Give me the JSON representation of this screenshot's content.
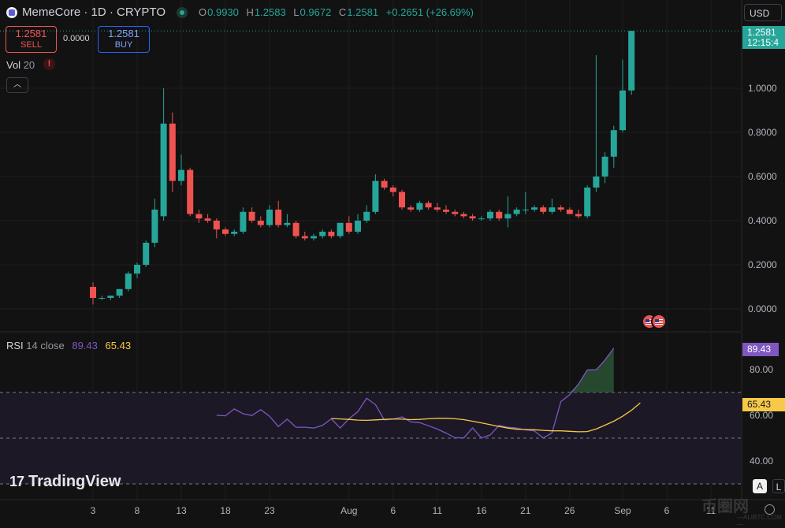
{
  "header": {
    "symbol": "MemeCore · 1D · CRYPTO",
    "ohlc": {
      "o_label": "O",
      "o": "0.9930",
      "h_label": "H",
      "h": "1.2583",
      "l_label": "L",
      "l": "0.9672",
      "c_label": "C",
      "c": "1.2581",
      "change": "+0.2651 (+26.69%)"
    }
  },
  "trade": {
    "sell_price": "1.2581",
    "sell_label": "SELL",
    "spread": "0.0000",
    "buy_price": "1.2581",
    "buy_label": "BUY"
  },
  "volume": {
    "label": "Vol",
    "length": "20",
    "warn": "!"
  },
  "collapse_glyph": "︿",
  "currency": "USD",
  "last_price": {
    "price": "1.2581",
    "countdown": "12:15:4"
  },
  "rsi": {
    "label": "RSI",
    "params": "14 close",
    "value": "89.43",
    "ma_value": "65.43"
  },
  "buttons": {
    "auto": "A",
    "log": "L"
  },
  "branding": {
    "tv_mark": "17",
    "tv_name": "TradingView"
  },
  "watermark": {
    "text": "币圈网",
    "sub": "—ALIBTC.COM—"
  },
  "colors": {
    "up": "#26a69a",
    "down": "#ef5350",
    "rsi": "#7e57c2",
    "rsi_ma": "#f7c948",
    "background": "#121212"
  },
  "chart_data": [
    {
      "type": "candlestick",
      "title": "MemeCore · 1D · CRYPTO",
      "x_tick_labels": [
        "3",
        "8",
        "13",
        "18",
        "23",
        "Aug",
        "6",
        "11",
        "16",
        "21",
        "26",
        "Sep",
        "6",
        "11"
      ],
      "y_tick_labels": [
        "1.0000",
        "0.8000",
        "0.6000",
        "0.4000",
        "0.2000",
        "0.0000"
      ],
      "ylim": [
        -0.1,
        1.26
      ],
      "grid": true,
      "candles": [
        {
          "d": "Jul 3",
          "o": 0.1,
          "h": 0.12,
          "l": 0.02,
          "c": 0.05
        },
        {
          "d": "Jul 4",
          "o": 0.05,
          "h": 0.06,
          "l": 0.04,
          "c": 0.05
        },
        {
          "d": "Jul 5",
          "o": 0.05,
          "h": 0.06,
          "l": 0.04,
          "c": 0.06
        },
        {
          "d": "Jul 6",
          "o": 0.06,
          "h": 0.09,
          "l": 0.05,
          "c": 0.09
        },
        {
          "d": "Jul 7",
          "o": 0.09,
          "h": 0.17,
          "l": 0.08,
          "c": 0.16
        },
        {
          "d": "Jul 8",
          "o": 0.16,
          "h": 0.21,
          "l": 0.14,
          "c": 0.2
        },
        {
          "d": "Jul 9",
          "o": 0.2,
          "h": 0.31,
          "l": 0.19,
          "c": 0.3
        },
        {
          "d": "Jul 10",
          "o": 0.3,
          "h": 0.5,
          "l": 0.28,
          "c": 0.45
        },
        {
          "d": "Jul 11",
          "o": 0.42,
          "h": 1.0,
          "l": 0.4,
          "c": 0.84
        },
        {
          "d": "Jul 12",
          "o": 0.84,
          "h": 0.89,
          "l": 0.53,
          "c": 0.58
        },
        {
          "d": "Jul 13",
          "o": 0.58,
          "h": 0.7,
          "l": 0.56,
          "c": 0.63
        },
        {
          "d": "Jul 14",
          "o": 0.63,
          "h": 0.64,
          "l": 0.42,
          "c": 0.43
        },
        {
          "d": "Jul 15",
          "o": 0.43,
          "h": 0.45,
          "l": 0.39,
          "c": 0.41
        },
        {
          "d": "Jul 16",
          "o": 0.41,
          "h": 0.43,
          "l": 0.39,
          "c": 0.4
        },
        {
          "d": "Jul 17",
          "o": 0.4,
          "h": 0.41,
          "l": 0.32,
          "c": 0.36
        },
        {
          "d": "Jul 18",
          "o": 0.36,
          "h": 0.37,
          "l": 0.33,
          "c": 0.34
        },
        {
          "d": "Jul 19",
          "o": 0.34,
          "h": 0.36,
          "l": 0.33,
          "c": 0.35
        },
        {
          "d": "Jul 20",
          "o": 0.35,
          "h": 0.46,
          "l": 0.34,
          "c": 0.44
        },
        {
          "d": "Jul 21",
          "o": 0.44,
          "h": 0.46,
          "l": 0.39,
          "c": 0.4
        },
        {
          "d": "Jul 22",
          "o": 0.4,
          "h": 0.42,
          "l": 0.37,
          "c": 0.38
        },
        {
          "d": "Jul 23",
          "o": 0.38,
          "h": 0.47,
          "l": 0.37,
          "c": 0.45
        },
        {
          "d": "Jul 24",
          "o": 0.45,
          "h": 0.49,
          "l": 0.37,
          "c": 0.38
        },
        {
          "d": "Jul 25",
          "o": 0.38,
          "h": 0.43,
          "l": 0.37,
          "c": 0.39
        },
        {
          "d": "Jul 26",
          "o": 0.39,
          "h": 0.4,
          "l": 0.32,
          "c": 0.33
        },
        {
          "d": "Jul 27",
          "o": 0.33,
          "h": 0.35,
          "l": 0.31,
          "c": 0.32
        },
        {
          "d": "Jul 28",
          "o": 0.32,
          "h": 0.34,
          "l": 0.31,
          "c": 0.33
        },
        {
          "d": "Jul 29",
          "o": 0.33,
          "h": 0.36,
          "l": 0.32,
          "c": 0.35
        },
        {
          "d": "Jul 30",
          "o": 0.35,
          "h": 0.36,
          "l": 0.32,
          "c": 0.33
        },
        {
          "d": "Jul 31",
          "o": 0.33,
          "h": 0.39,
          "l": 0.32,
          "c": 0.39
        },
        {
          "d": "Aug 1",
          "o": 0.39,
          "h": 0.42,
          "l": 0.34,
          "c": 0.35
        },
        {
          "d": "Aug 2",
          "o": 0.35,
          "h": 0.43,
          "l": 0.34,
          "c": 0.4
        },
        {
          "d": "Aug 3",
          "o": 0.4,
          "h": 0.47,
          "l": 0.39,
          "c": 0.44
        },
        {
          "d": "Aug 4",
          "o": 0.44,
          "h": 0.61,
          "l": 0.43,
          "c": 0.58
        },
        {
          "d": "Aug 5",
          "o": 0.58,
          "h": 0.59,
          "l": 0.54,
          "c": 0.55
        },
        {
          "d": "Aug 6",
          "o": 0.55,
          "h": 0.56,
          "l": 0.51,
          "c": 0.53
        },
        {
          "d": "Aug 7",
          "o": 0.53,
          "h": 0.54,
          "l": 0.45,
          "c": 0.46
        },
        {
          "d": "Aug 8",
          "o": 0.46,
          "h": 0.47,
          "l": 0.44,
          "c": 0.45
        },
        {
          "d": "Aug 9",
          "o": 0.45,
          "h": 0.49,
          "l": 0.44,
          "c": 0.48
        },
        {
          "d": "Aug 10",
          "o": 0.48,
          "h": 0.49,
          "l": 0.45,
          "c": 0.46
        },
        {
          "d": "Aug 11",
          "o": 0.46,
          "h": 0.48,
          "l": 0.44,
          "c": 0.45
        },
        {
          "d": "Aug 12",
          "o": 0.45,
          "h": 0.47,
          "l": 0.43,
          "c": 0.44
        },
        {
          "d": "Aug 13",
          "o": 0.44,
          "h": 0.45,
          "l": 0.42,
          "c": 0.43
        },
        {
          "d": "Aug 14",
          "o": 0.43,
          "h": 0.44,
          "l": 0.41,
          "c": 0.42
        },
        {
          "d": "Aug 15",
          "o": 0.42,
          "h": 0.43,
          "l": 0.4,
          "c": 0.41
        },
        {
          "d": "Aug 16",
          "o": 0.41,
          "h": 0.42,
          "l": 0.4,
          "c": 0.41
        },
        {
          "d": "Aug 17",
          "o": 0.41,
          "h": 0.45,
          "l": 0.4,
          "c": 0.44
        },
        {
          "d": "Aug 18",
          "o": 0.44,
          "h": 0.45,
          "l": 0.4,
          "c": 0.41
        },
        {
          "d": "Aug 19",
          "o": 0.41,
          "h": 0.51,
          "l": 0.37,
          "c": 0.43
        },
        {
          "d": "Aug 20",
          "o": 0.43,
          "h": 0.46,
          "l": 0.42,
          "c": 0.45
        },
        {
          "d": "Aug 21",
          "o": 0.45,
          "h": 0.53,
          "l": 0.43,
          "c": 0.45
        },
        {
          "d": "Aug 22",
          "o": 0.45,
          "h": 0.47,
          "l": 0.44,
          "c": 0.46
        },
        {
          "d": "Aug 23",
          "o": 0.46,
          "h": 0.47,
          "l": 0.43,
          "c": 0.44
        },
        {
          "d": "Aug 24",
          "o": 0.44,
          "h": 0.5,
          "l": 0.43,
          "c": 0.46
        },
        {
          "d": "Aug 25",
          "o": 0.46,
          "h": 0.47,
          "l": 0.44,
          "c": 0.45
        },
        {
          "d": "Aug 26",
          "o": 0.45,
          "h": 0.46,
          "l": 0.43,
          "c": 0.43
        },
        {
          "d": "Aug 27",
          "o": 0.43,
          "h": 0.45,
          "l": 0.41,
          "c": 0.42
        },
        {
          "d": "Aug 28",
          "o": 0.42,
          "h": 0.56,
          "l": 0.41,
          "c": 0.55
        },
        {
          "d": "Aug 29",
          "o": 0.55,
          "h": 1.15,
          "l": 0.53,
          "c": 0.6
        },
        {
          "d": "Aug 30",
          "o": 0.6,
          "h": 0.71,
          "l": 0.57,
          "c": 0.69
        },
        {
          "d": "Aug 31",
          "o": 0.69,
          "h": 0.83,
          "l": 0.64,
          "c": 0.81
        },
        {
          "d": "Sep 1",
          "o": 0.81,
          "h": 1.13,
          "l": 0.8,
          "c": 0.99
        },
        {
          "d": "Sep 2",
          "o": 0.99,
          "h": 1.26,
          "l": 0.97,
          "c": 1.26
        }
      ]
    },
    {
      "type": "line",
      "title": "RSI 14 close",
      "y_tick_labels": [
        "80.00",
        "60.00",
        "40.00"
      ],
      "ylim": [
        30,
        96
      ],
      "bands": [
        70,
        50,
        30
      ],
      "series": [
        {
          "name": "RSI",
          "start_index": 14,
          "values": [
            60.0,
            59.8,
            62.8,
            60.7,
            59.9,
            62.5,
            59.6,
            55.1,
            58.3,
            54.8,
            54.8,
            54.4,
            55.6,
            58.5,
            54.4,
            58.5,
            61.6,
            67.5,
            64.7,
            58.0,
            58.3,
            59.3,
            57.1,
            56.8,
            55.4,
            54.0,
            52.2,
            50.2,
            50.1,
            54.5,
            50.1,
            51.4,
            55.6,
            54.8,
            54.4,
            53.6,
            53.2,
            50.1,
            52.3,
            66.0,
            69.0,
            73.7,
            79.9,
            79.9,
            84.2,
            89.4
          ]
        },
        {
          "name": "RSI-based MA",
          "start_index": 27,
          "values": [
            58.6,
            58.4,
            58.2,
            57.9,
            57.8,
            58.0,
            58.2,
            58.4,
            58.3,
            58.1,
            58.2,
            58.5,
            58.7,
            58.7,
            58.5,
            58.1,
            57.4,
            56.7,
            55.9,
            55.1,
            54.4,
            53.9,
            53.8,
            53.7,
            53.4,
            53.2,
            53.2,
            53.0,
            52.8,
            52.9,
            54.0,
            55.7,
            57.4,
            59.6,
            62.2,
            65.4
          ]
        }
      ]
    }
  ]
}
